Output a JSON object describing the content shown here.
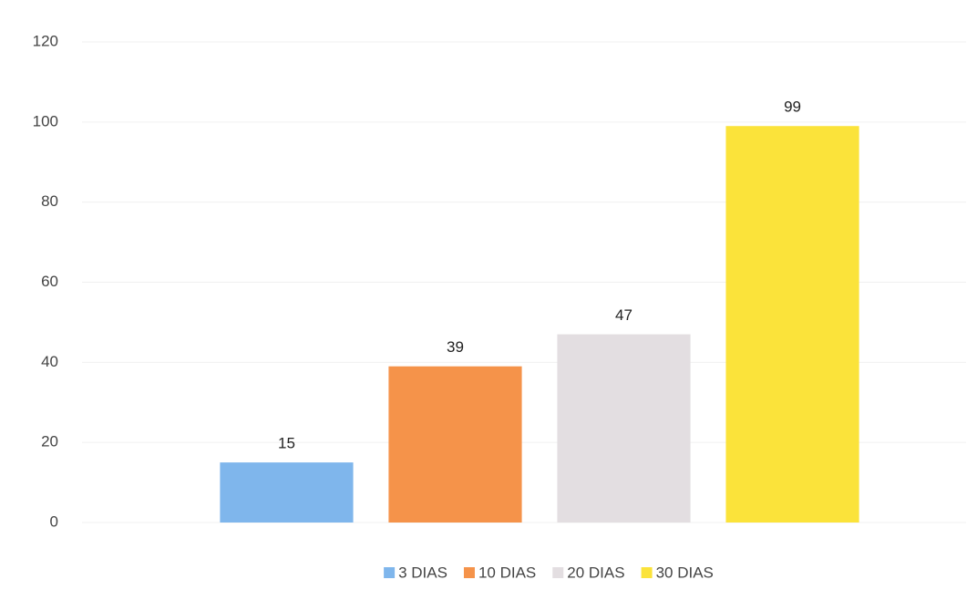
{
  "chart_data": {
    "type": "bar",
    "categories": [
      null
    ],
    "series": [
      {
        "name": "3 DIAS",
        "color": "#7fb6ec",
        "values": [
          15
        ]
      },
      {
        "name": "10 DIAS",
        "color": "#f5934a",
        "values": [
          39
        ]
      },
      {
        "name": "20 DIAS",
        "color": "#e3dee1",
        "values": [
          47
        ]
      },
      {
        "name": "30 DIAS",
        "color": "#fbe33a",
        "values": [
          99
        ]
      }
    ],
    "ylim": [
      0,
      120
    ],
    "yticks": [
      0,
      20,
      40,
      60,
      80,
      100,
      120
    ],
    "grid": true,
    "legend": "bottom"
  }
}
